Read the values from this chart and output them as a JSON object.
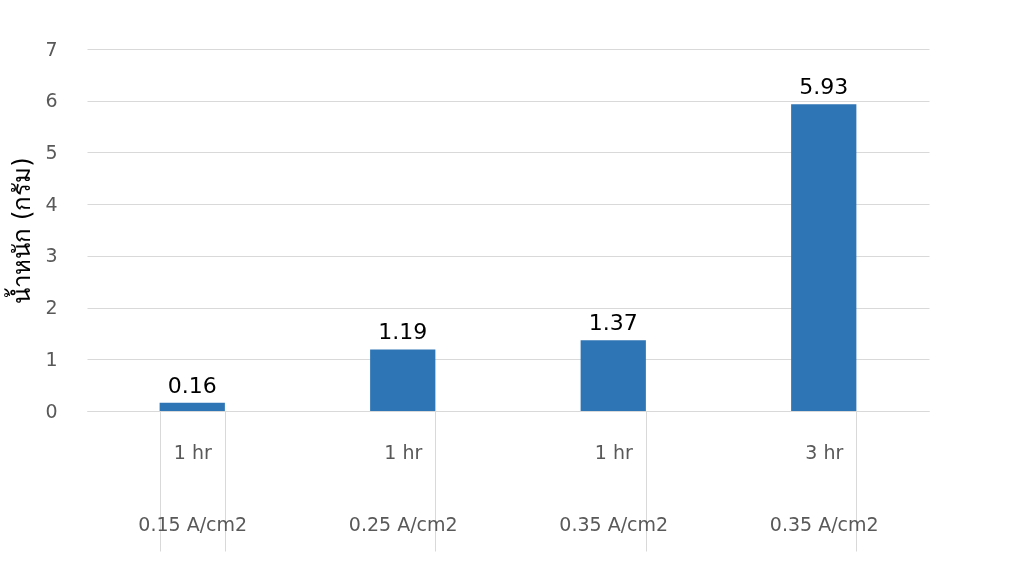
{
  "chart_data": {
    "type": "bar",
    "ylabel": "น้ำหนัก (กรัม)",
    "categories": [
      "1 hr\n0.15 A/cm2",
      "1 hr\n0.25 A/cm2",
      "1 hr\n0.35 A/cm2",
      "3 hr\n0.35 A/cm2"
    ],
    "values": [
      0.16,
      1.19,
      1.37,
      5.93
    ],
    "color": "#2e75b6",
    "ylim": [
      0,
      7
    ],
    "yticks": [
      0,
      1,
      2,
      3,
      4,
      5,
      6,
      7
    ],
    "grid": "y",
    "data_labels": true
  }
}
